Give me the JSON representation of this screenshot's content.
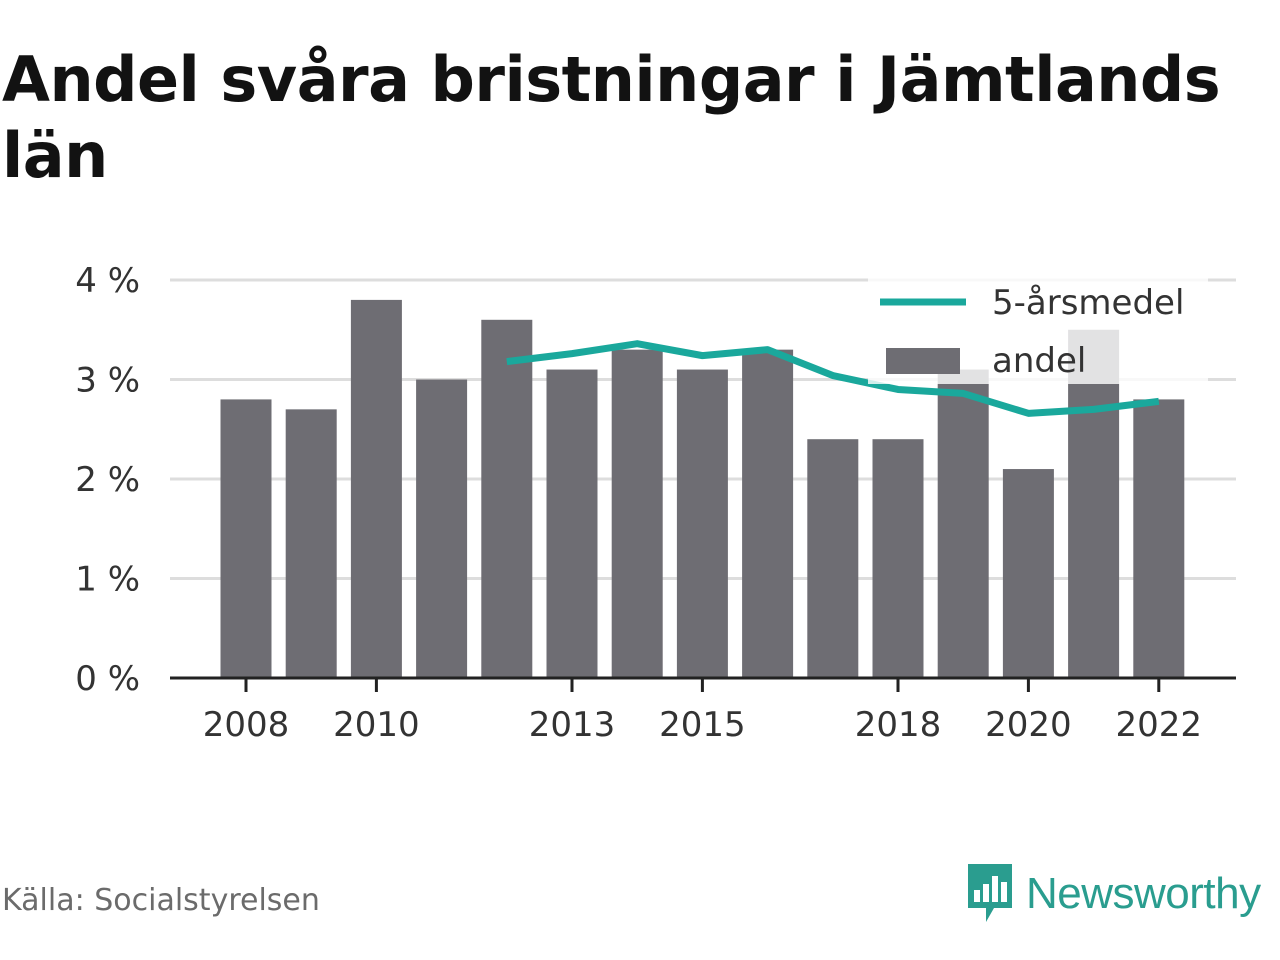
{
  "title": "Andel svåra bristningar i Jämtlands län",
  "source": "Källa: Socialstyrelsen",
  "brand": {
    "name": "Newsworthy",
    "icon": "newsworthy-logo-icon",
    "color": "#2a9d8f"
  },
  "colors": {
    "bar": "#6e6d73",
    "line": "#1aa89c",
    "grid": "#dddddd",
    "axis": "#222222"
  },
  "legend": {
    "line_label": "5-årsmedel",
    "bar_label": "andel",
    "placement": "top-right"
  },
  "chart_data": {
    "type": "bar",
    "title": "Andel svåra bristningar i Jämtlands län",
    "xlabel": "",
    "ylabel": "",
    "ylim": [
      0,
      4
    ],
    "y_ticks": [
      "0 %",
      "1 %",
      "2 %",
      "3 %",
      "4 %"
    ],
    "x_tick_labels": [
      "2008",
      "2010",
      "2013",
      "2015",
      "2018",
      "2020",
      "2022"
    ],
    "categories": [
      2008,
      2009,
      2010,
      2011,
      2012,
      2013,
      2014,
      2015,
      2016,
      2017,
      2018,
      2019,
      2020,
      2021,
      2022
    ],
    "grid": true,
    "series": [
      {
        "name": "andel",
        "type": "bar",
        "values": [
          2.8,
          2.7,
          3.8,
          3.0,
          3.6,
          3.1,
          3.3,
          3.1,
          3.3,
          2.4,
          2.4,
          3.1,
          2.1,
          3.5,
          2.8
        ]
      },
      {
        "name": "5-årsmedel",
        "type": "line",
        "values": [
          null,
          null,
          null,
          null,
          3.18,
          3.26,
          3.36,
          3.24,
          3.3,
          3.04,
          2.9,
          2.86,
          2.66,
          2.7,
          2.78
        ]
      }
    ]
  }
}
